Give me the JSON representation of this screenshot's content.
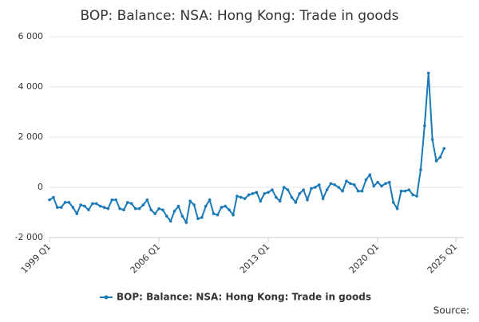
{
  "chart_data": {
    "type": "line",
    "title": "BOP: Balance: NSA: Hong Kong: Trade in goods",
    "source": "Source:",
    "categories": [
      "1999 Q1",
      null,
      null,
      null,
      null,
      null,
      null,
      null,
      null,
      null,
      null,
      null,
      null,
      null,
      null,
      null,
      null,
      null,
      null,
      null,
      null,
      null,
      null,
      null,
      null,
      null,
      null,
      null,
      "2006 Q1",
      null,
      null,
      null,
      null,
      null,
      null,
      null,
      null,
      null,
      null,
      null,
      null,
      null,
      null,
      null,
      null,
      null,
      null,
      null,
      null,
      null,
      null,
      null,
      null,
      null,
      null,
      null,
      "2013 Q1",
      null,
      null,
      null,
      null,
      null,
      null,
      null,
      null,
      null,
      null,
      null,
      null,
      null,
      null,
      null,
      null,
      null,
      null,
      null,
      null,
      null,
      null,
      null,
      null,
      null,
      null,
      null,
      "2020 Q1",
      null,
      null,
      null,
      null,
      null,
      null,
      null,
      null,
      null,
      null,
      null,
      null,
      null,
      null,
      null,
      null,
      null,
      null,
      null,
      "2025 Q1"
    ],
    "series": [
      {
        "name": "BOP: Balance: NSA: Hong Kong: Trade in goods",
        "color": "#1a7ab8",
        "values": [
          -500,
          -400,
          -800,
          -800,
          -600,
          -600,
          -800,
          -1050,
          -700,
          -750,
          -900,
          -650,
          -650,
          -750,
          -800,
          -850,
          -500,
          -500,
          -850,
          -900,
          -600,
          -650,
          -850,
          -850,
          -700,
          -500,
          -900,
          -1050,
          -850,
          -900,
          -1150,
          -1350,
          -950,
          -750,
          -1150,
          -1400,
          -550,
          -700,
          -1250,
          -1200,
          -750,
          -500,
          -1050,
          -1100,
          -800,
          -750,
          -900,
          -1100,
          -350,
          -400,
          -450,
          -300,
          -250,
          -200,
          -550,
          -250,
          -200,
          -100,
          -400,
          -550,
          0,
          -100,
          -400,
          -600,
          -250,
          -100,
          -500,
          -50,
          0,
          100,
          -450,
          -100,
          150,
          100,
          0,
          -150,
          250,
          150,
          100,
          -150,
          -150,
          300,
          500,
          50,
          200,
          50,
          150,
          200,
          -600,
          -850,
          -150,
          -150,
          -100,
          -300,
          -350,
          700,
          2450,
          4550,
          1900,
          1050,
          1200,
          1550,
          null,
          null,
          null
        ]
      }
    ],
    "ylim": [
      -2000,
      6000
    ],
    "yticks": [
      {
        "value": -2000,
        "label": "-2 000"
      },
      0,
      {
        "value": 2000,
        "label": "2 000"
      },
      {
        "value": 4000,
        "label": "4 000"
      },
      {
        "value": 6000,
        "label": "6 000"
      }
    ],
    "grid": true
  }
}
